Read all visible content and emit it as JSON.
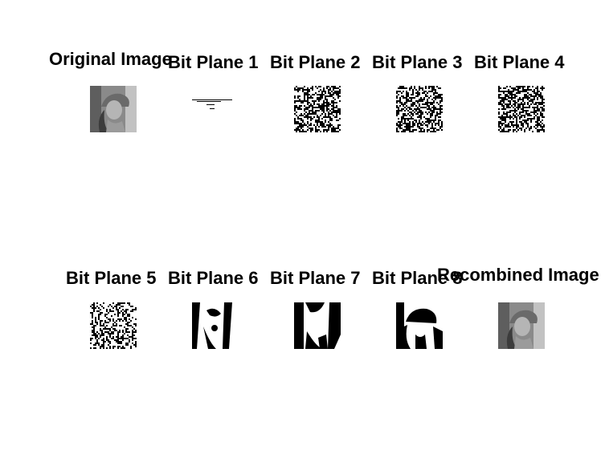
{
  "figure": {
    "panels": [
      {
        "id": "original",
        "title": "Original Image",
        "image": "grayscale portrait photo"
      },
      {
        "id": "bp1",
        "title": "Bit Plane 1",
        "image": "binary plane, nearly blank"
      },
      {
        "id": "bp2",
        "title": "Bit Plane 2",
        "image": "binary noise"
      },
      {
        "id": "bp3",
        "title": "Bit Plane 3",
        "image": "binary noise"
      },
      {
        "id": "bp4",
        "title": "Bit Plane 4",
        "image": "binary noise with faint structure"
      },
      {
        "id": "bp5",
        "title": "Bit Plane 5",
        "image": "binary texture"
      },
      {
        "id": "bp6",
        "title": "Bit Plane 6",
        "image": "binary regions"
      },
      {
        "id": "bp7",
        "title": "Bit Plane 7",
        "image": "binary shapes"
      },
      {
        "id": "bp8",
        "title": "Bit Plane 8",
        "image": "binary silhouette"
      },
      {
        "id": "recombined",
        "title": "Recombined Image",
        "image": "grayscale portrait photo"
      }
    ]
  }
}
